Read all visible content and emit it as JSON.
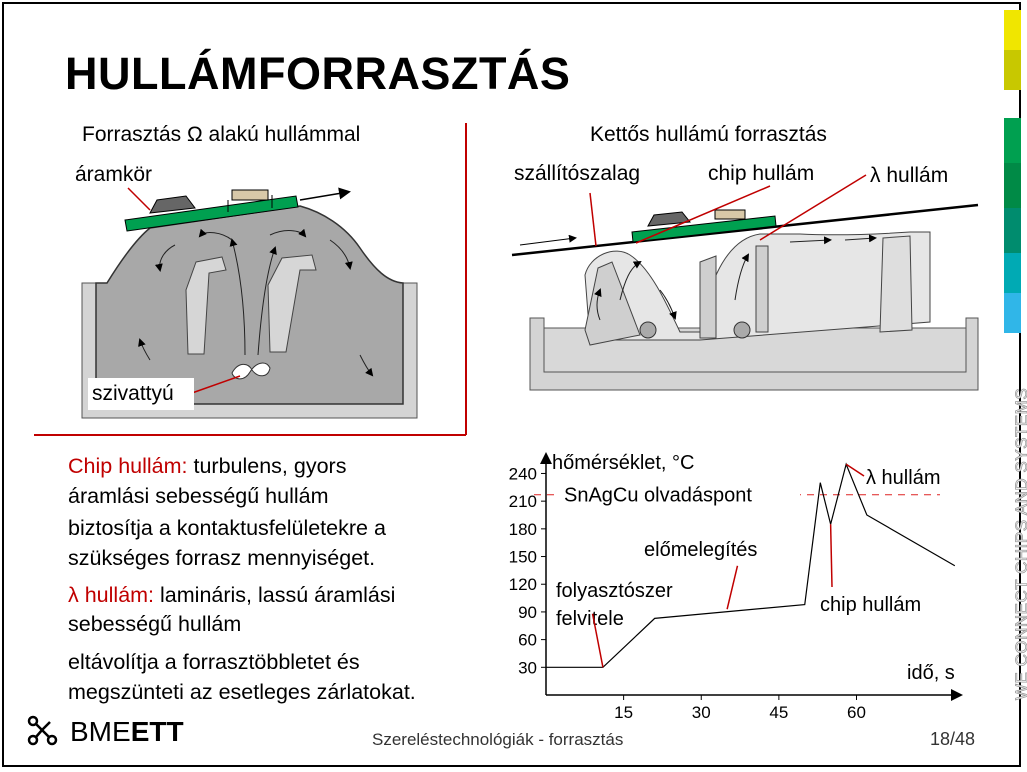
{
  "slide": {
    "title": "HULLÁMFORRASZTÁS",
    "footer_center": "Szereléstechnológiák - forrasztás",
    "page": "18/48",
    "logo": {
      "prefix": "BME",
      "suffix": "ETT"
    },
    "side_text": "WE CONNECT CHIPS AND SYSTEMS",
    "stripe_colors": [
      "#f0e600",
      "#c8c800",
      "#00a050",
      "#008a46",
      "#008c6e",
      "#00aab4",
      "#30b6e8"
    ]
  },
  "left_figure": {
    "heading": "Forrasztás Ω alakú hullámmal",
    "label_circuit": "áramkör",
    "label_pump": "szivattyú"
  },
  "right_figure": {
    "heading": "Kettős hullámú forrasztás",
    "label_conveyor": "szállítószalag",
    "label_chip_wave": "chip hullám",
    "label_lambda_wave": "λ hullám"
  },
  "text": {
    "chip_term": "Chip hullám:",
    "chip_line1": " turbulens, gyors",
    "chip_line2": "áramlási sebességű hullám",
    "chip_line3": "biztosítja a kontaktusfelületekre a",
    "chip_line4": "szükséges forrasz mennyiséget.",
    "lambda_term": "λ hullám:",
    "lambda_line1": " lamináris, lassú áramlási",
    "lambda_line2": "sebességű hullám",
    "lambda_line3": "eltávolítja a forrasztöbbletet és",
    "lambda_line4": "megszünteti az esetleges zárlatokat."
  },
  "chart_data": {
    "type": "line",
    "ylabel": "hőmérséklet, °C",
    "xlabel": "idő, s",
    "x_ticks": [
      15,
      30,
      45,
      60
    ],
    "y_ticks": [
      30,
      60,
      90,
      120,
      150,
      180,
      210,
      240
    ],
    "xlim": [
      0,
      80
    ],
    "ylim": [
      0,
      260
    ],
    "series": [
      {
        "x": [
          0,
          11,
          21,
          50,
          53,
          55,
          58,
          62,
          79
        ],
        "y": [
          30,
          30,
          83,
          98,
          230,
          185,
          250,
          195,
          140
        ]
      }
    ],
    "reference_line": {
      "y": 217,
      "label": "SnAgCu olvadáspont"
    },
    "annotations": {
      "flux": "folyasztószer",
      "flux2": "felvitele",
      "preheat": "előmelegítés",
      "lambda": "λ hullám",
      "chip": "chip hullám"
    }
  }
}
